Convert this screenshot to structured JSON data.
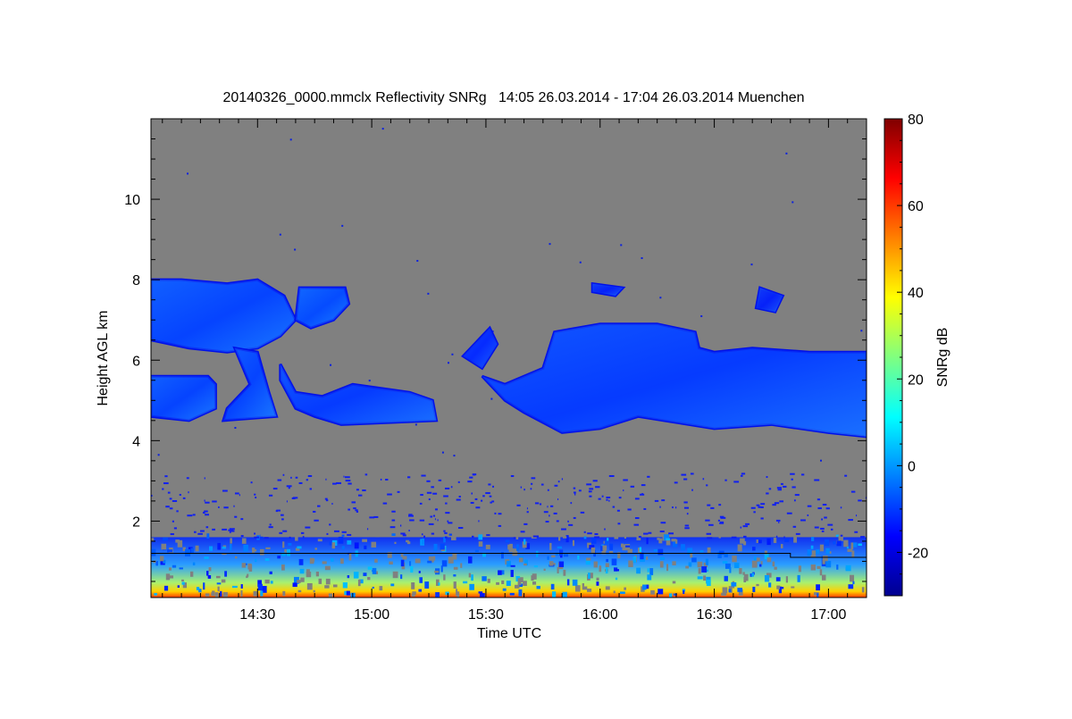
{
  "chart_data": {
    "type": "heatmap",
    "title": "20140326_0000.mmclx Reflectivity SNRg   14:05 26.03.2014 - 17:04 26.03.2014 Muenchen",
    "xlabel": "Time UTC",
    "ylabel": "Height AGL km",
    "x_unit": "minutes after 14:00 UTC",
    "xlim": [
      2,
      190
    ],
    "ylim": [
      0.1,
      12.0
    ],
    "x_ticks": [
      {
        "value": 30,
        "label": "14:30"
      },
      {
        "value": 60,
        "label": "15:00"
      },
      {
        "value": 90,
        "label": "15:30"
      },
      {
        "value": 120,
        "label": "16:00"
      },
      {
        "value": 150,
        "label": "16:30"
      },
      {
        "value": 180,
        "label": "17:00"
      }
    ],
    "y_ticks": [
      {
        "value": 2,
        "label": "2"
      },
      {
        "value": 4,
        "label": "4"
      },
      {
        "value": 6,
        "label": "6"
      },
      {
        "value": 8,
        "label": "8"
      },
      {
        "value": 10,
        "label": "10"
      }
    ],
    "background_color": "#808080",
    "colorbar": {
      "label": "SNRg dB",
      "range": [
        -30,
        80
      ],
      "ticks": [
        {
          "value": -20,
          "label": "-20"
        },
        {
          "value": 0,
          "label": "0"
        },
        {
          "value": 20,
          "label": "20"
        },
        {
          "value": 40,
          "label": "40"
        },
        {
          "value": 60,
          "label": "60"
        },
        {
          "value": 80,
          "label": "80"
        }
      ],
      "colormap": [
        "#00008f",
        "#0000ff",
        "#0080ff",
        "#00ffff",
        "#80ff80",
        "#ffff00",
        "#ff8000",
        "#ff0000",
        "#800000"
      ]
    },
    "cloud_regions": [
      {
        "name": "upper-cloud-left",
        "snr_db": -8,
        "points": [
          [
            2,
            6.6
          ],
          [
            2,
            8.0
          ],
          [
            10,
            8.0
          ],
          [
            22,
            7.9
          ],
          [
            30,
            8.0
          ],
          [
            37,
            7.6
          ],
          [
            40,
            7.0
          ],
          [
            36,
            6.6
          ],
          [
            30,
            6.3
          ],
          [
            22,
            6.2
          ],
          [
            12,
            6.3
          ],
          [
            2,
            6.5
          ]
        ]
      },
      {
        "name": "upper-cloud-patch",
        "snr_db": -6,
        "points": [
          [
            40,
            7.0
          ],
          [
            41,
            7.8
          ],
          [
            53,
            7.8
          ],
          [
            54,
            7.4
          ],
          [
            50,
            7.0
          ],
          [
            44,
            6.8
          ]
        ]
      },
      {
        "name": "fall-streak",
        "snr_db": -8,
        "points": [
          [
            24,
            6.3
          ],
          [
            30,
            6.2
          ],
          [
            33,
            5.2
          ],
          [
            35,
            4.6
          ],
          [
            21,
            4.5
          ],
          [
            22,
            4.8
          ],
          [
            28,
            5.4
          ]
        ]
      },
      {
        "name": "mid-cloud-left",
        "snr_db": -8,
        "points": [
          [
            2,
            4.6
          ],
          [
            2,
            5.6
          ],
          [
            17,
            5.6
          ],
          [
            19,
            5.4
          ],
          [
            19,
            4.8
          ],
          [
            12,
            4.5
          ]
        ]
      },
      {
        "name": "mid-cloud-center",
        "snr_db": -10,
        "points": [
          [
            36,
            5.9
          ],
          [
            40,
            5.2
          ],
          [
            47,
            5.1
          ],
          [
            55,
            5.4
          ],
          [
            70,
            5.2
          ],
          [
            76,
            5.0
          ],
          [
            77,
            4.5
          ],
          [
            52,
            4.4
          ],
          [
            45,
            4.6
          ],
          [
            40,
            4.8
          ],
          [
            36,
            5.5
          ]
        ]
      },
      {
        "name": "cloud-onset",
        "snr_db": -14,
        "points": [
          [
            84,
            6.1
          ],
          [
            91,
            6.8
          ],
          [
            93,
            6.4
          ],
          [
            89,
            5.8
          ]
        ]
      },
      {
        "name": "main-cloud",
        "snr_db": -10,
        "points": [
          [
            89,
            5.6
          ],
          [
            95,
            5.4
          ],
          [
            105,
            5.8
          ],
          [
            108,
            6.7
          ],
          [
            120,
            6.9
          ],
          [
            135,
            6.9
          ],
          [
            145,
            6.7
          ],
          [
            146,
            6.3
          ],
          [
            150,
            6.2
          ],
          [
            160,
            6.3
          ],
          [
            175,
            6.2
          ],
          [
            190,
            6.2
          ],
          [
            190,
            4.1
          ],
          [
            180,
            4.2
          ],
          [
            165,
            4.4
          ],
          [
            150,
            4.3
          ],
          [
            130,
            4.6
          ],
          [
            120,
            4.3
          ],
          [
            110,
            4.2
          ],
          [
            100,
            4.7
          ],
          [
            95,
            5.0
          ]
        ]
      },
      {
        "name": "high-patch-1",
        "snr_db": -18,
        "points": [
          [
            118,
            7.9
          ],
          [
            126,
            7.8
          ],
          [
            124,
            7.6
          ],
          [
            118,
            7.7
          ]
        ]
      },
      {
        "name": "high-patch-2",
        "snr_db": -18,
        "points": [
          [
            162,
            7.8
          ],
          [
            168,
            7.6
          ],
          [
            166,
            7.2
          ],
          [
            161,
            7.3
          ]
        ]
      }
    ],
    "boundary_layer": {
      "top_km": 1.6,
      "line_km": [
        [
          2,
          1.2
        ],
        [
          170,
          1.2
        ],
        [
          170,
          1.1
        ],
        [
          190,
          1.1
        ]
      ]
    }
  }
}
